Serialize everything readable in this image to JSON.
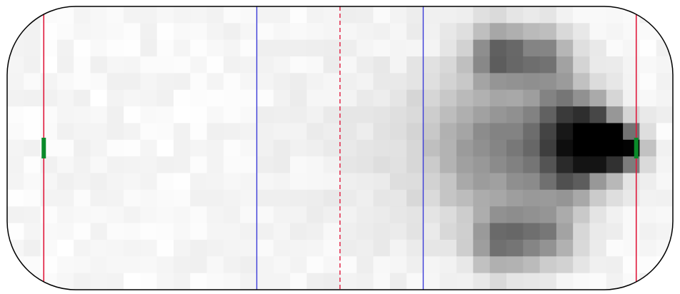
{
  "chart_data": {
    "type": "heatmap",
    "title": "",
    "xlabel": "",
    "ylabel": "",
    "grid": false,
    "legend": "none",
    "x_range": [
      -100,
      100
    ],
    "y_range": [
      -42.5,
      42.5
    ],
    "grid_cols": 40,
    "grid_rows": 17,
    "colors": {
      "boards": "#000000",
      "goal_line": "#e0193c",
      "blue_line": "#3a3ad8",
      "center_line": "#e0193c",
      "goal": "#0a8a2a",
      "heat_low": "#ffffff",
      "heat_high": "#000000"
    },
    "lines": {
      "goal_line_x": [
        -89,
        89
      ],
      "blue_line_x": [
        -25,
        25
      ],
      "center_line_x": 0,
      "center_line_style": "dashed"
    },
    "goals": [
      {
        "x": -89,
        "y": 0
      },
      {
        "x": 89,
        "y": 0
      }
    ],
    "hotspots": [
      {
        "x": 78,
        "y": 2,
        "spread": 5,
        "weight": 1.0
      },
      {
        "x": 85,
        "y": 0,
        "spread": 4,
        "weight": 0.9
      },
      {
        "x": 70,
        "y": 8,
        "spread": 7,
        "weight": 0.45
      },
      {
        "x": 70,
        "y": -6,
        "spread": 7,
        "weight": 0.45
      },
      {
        "x": 48,
        "y": 28,
        "spread": 6,
        "weight": 0.55
      },
      {
        "x": 48,
        "y": -28,
        "spread": 6,
        "weight": 0.5
      },
      {
        "x": 62,
        "y": 27,
        "spread": 6,
        "weight": 0.4
      },
      {
        "x": 62,
        "y": -27,
        "spread": 6,
        "weight": 0.4
      },
      {
        "x": 42,
        "y": 0,
        "spread": 14,
        "weight": 0.25
      },
      {
        "x": 60,
        "y": 0,
        "spread": 14,
        "weight": 0.3
      },
      {
        "x": 20,
        "y": 0,
        "spread": 25,
        "weight": 0.05
      }
    ]
  }
}
